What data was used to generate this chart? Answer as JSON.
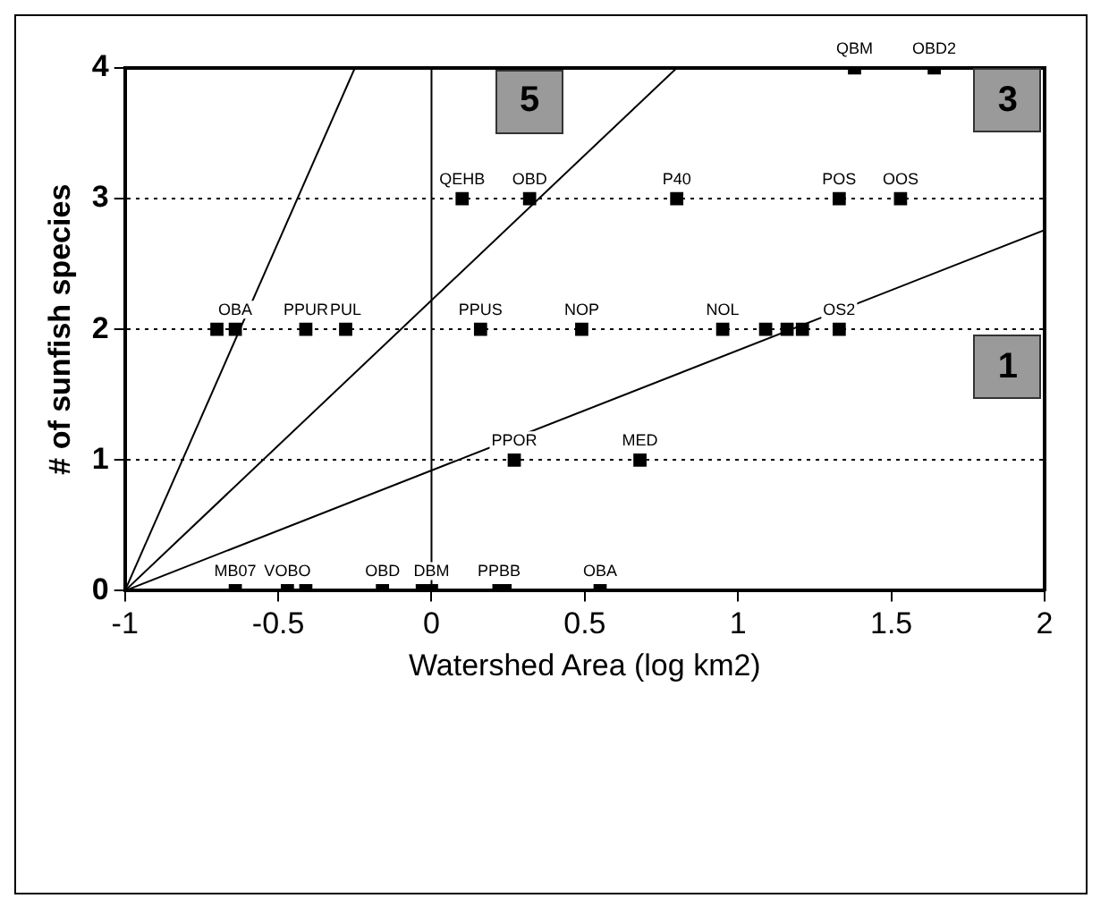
{
  "chart_data": {
    "type": "scatter",
    "xlabel": "Watershed Area (log km2)",
    "ylabel": "# of sunfish species",
    "xlim": [
      -1,
      2
    ],
    "xticks": [
      -1,
      -0.5,
      0,
      0.5,
      1,
      1.5,
      2
    ],
    "ylim": [
      0,
      4
    ],
    "yticks": [
      0,
      1,
      2,
      3,
      4
    ],
    "grid": "y",
    "legend": false,
    "marker": "square",
    "ref_lines": [
      {
        "axis": "x",
        "value": 0
      }
    ],
    "series": [
      {
        "color": "#000000",
        "x": [
          1.38,
          1.64,
          0.1,
          0.32,
          0.8,
          1.33,
          1.53,
          -0.7,
          -0.64,
          -0.41,
          -0.28,
          0.16,
          0.49,
          0.95,
          1.09,
          1.16,
          1.21,
          1.33,
          0.27,
          0.68,
          -0.64,
          -0.47,
          -0.41,
          -0.16,
          -0.03,
          0.0,
          0.22,
          0.24,
          0.55
        ],
        "values": [
          4,
          4,
          3,
          3,
          3,
          3,
          3,
          2,
          2,
          2,
          2,
          2,
          2,
          2,
          2,
          2,
          2,
          2,
          1,
          1,
          0,
          0,
          0,
          0,
          0,
          0,
          0,
          0,
          0
        ]
      },
      {
        "type": "line",
        "color": "#000000",
        "marker": "none",
        "x": [
          -1,
          -0.25
        ],
        "values": [
          0,
          4
        ]
      },
      {
        "type": "line",
        "color": "#000000",
        "marker": "none",
        "x": [
          -1,
          0.8
        ],
        "values": [
          0,
          4
        ]
      },
      {
        "type": "line",
        "color": "#000000",
        "marker": "none",
        "x": [
          -1,
          2
        ],
        "values": [
          0,
          2.76
        ]
      }
    ],
    "annotations": [
      {
        "text": "5",
        "x": 0.32,
        "y": 3.74
      },
      {
        "text": "3",
        "x": 1.88,
        "y": 3.75
      },
      {
        "text": "1",
        "x": 1.88,
        "y": 1.71
      },
      {
        "text": "QBM",
        "x": 1.38,
        "y": 4
      },
      {
        "text": "OBD2",
        "x": 1.64,
        "y": 4
      },
      {
        "text": "QEHB",
        "x": 0.1,
        "y": 3
      },
      {
        "text": "OBD",
        "x": 0.32,
        "y": 3
      },
      {
        "text": "P40",
        "x": 0.8,
        "y": 3
      },
      {
        "text": "POS",
        "x": 1.33,
        "y": 3
      },
      {
        "text": "OOS",
        "x": 1.53,
        "y": 3
      },
      {
        "text": "OBA",
        "x": -0.64,
        "y": 2
      },
      {
        "text": "PPUR",
        "x": -0.41,
        "y": 2
      },
      {
        "text": "PUL",
        "x": -0.28,
        "y": 2
      },
      {
        "text": "PPUS",
        "x": 0.16,
        "y": 2
      },
      {
        "text": "NOP",
        "x": 0.49,
        "y": 2
      },
      {
        "text": "NOL",
        "x": 0.95,
        "y": 2
      },
      {
        "text": "OS2",
        "x": 1.33,
        "y": 2
      },
      {
        "text": "PPOR",
        "x": 0.27,
        "y": 1
      },
      {
        "text": "MED",
        "x": 0.68,
        "y": 1
      },
      {
        "text": "MB07",
        "x": -0.64,
        "y": 0
      },
      {
        "text": "VOBO",
        "x": -0.47,
        "y": 0
      },
      {
        "text": "OBD",
        "x": -0.16,
        "y": 0
      },
      {
        "text": "DBM",
        "x": 0.0,
        "y": 0
      },
      {
        "text": "PPBB",
        "x": 0.22,
        "y": 0
      },
      {
        "text": "OBA",
        "x": 0.55,
        "y": 0
      }
    ]
  }
}
